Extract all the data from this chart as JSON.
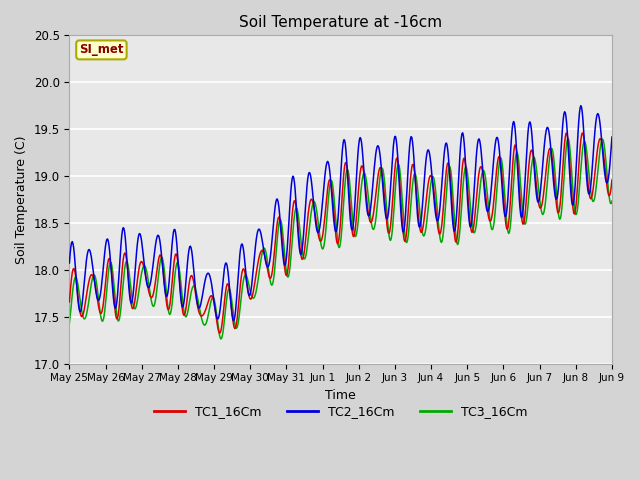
{
  "title": "Soil Temperature at -16cm",
  "xlabel": "Time",
  "ylabel": "Soil Temperature (C)",
  "ylim": [
    17.0,
    20.5
  ],
  "xlim_days": 15,
  "annotation_text": "SI_met",
  "annotation_bg": "#ffffcc",
  "annotation_border": "#aaaa00",
  "annotation_fg": "#880000",
  "series": [
    {
      "label": "TC1_16Cm",
      "color": "#dd0000"
    },
    {
      "label": "TC2_16Cm",
      "color": "#0000dd"
    },
    {
      "label": "TC3_16Cm",
      "color": "#00aa00"
    }
  ],
  "xtick_labels": [
    "May 25",
    "May 26",
    "May 27",
    "May 28",
    "May 29",
    "May 30",
    "May 31",
    "Jun 1",
    "Jun 2",
    "Jun 3",
    "Jun 4",
    "Jun 5",
    "Jun 6",
    "Jun 7",
    "Jun 8",
    "Jun 9"
  ],
  "fig_bg": "#d4d4d4",
  "plot_bg": "#e8e8e8"
}
